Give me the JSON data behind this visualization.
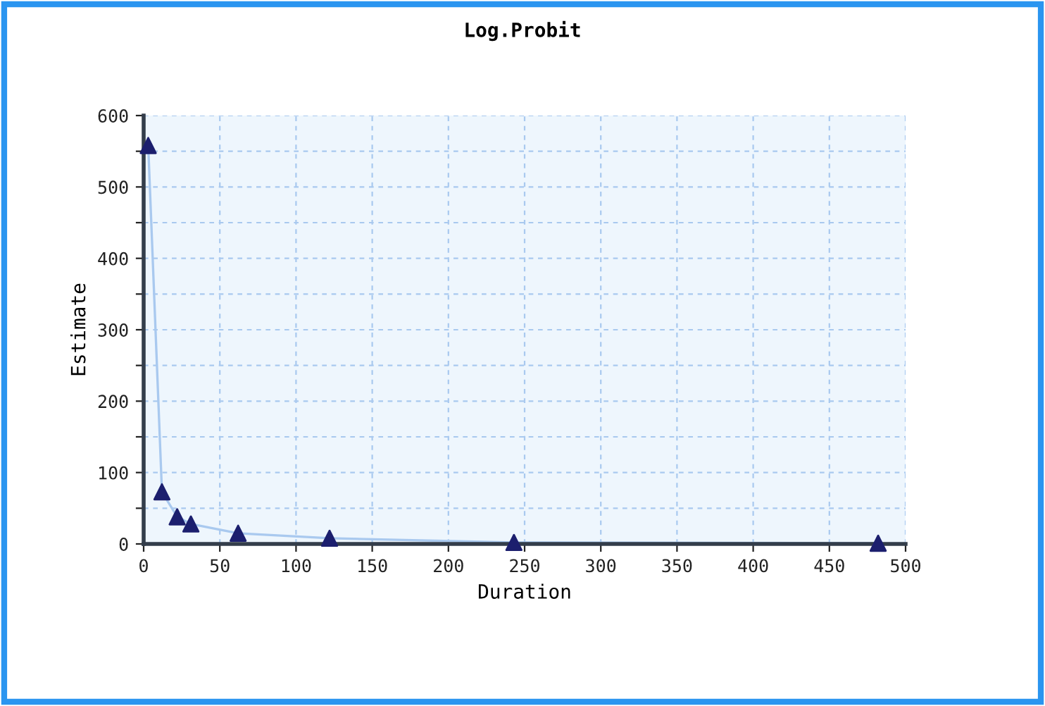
{
  "chart_data": {
    "type": "scatter",
    "title": "Log.Probit",
    "xlabel": "Duration",
    "ylabel": "Estimate",
    "series": [
      {
        "type": "line",
        "color": "#a9c9ef",
        "x": [
          3,
          12,
          22,
          31,
          62,
          122,
          243,
          482
        ],
        "values": [
          558,
          73,
          38,
          28,
          15,
          8,
          2,
          1
        ],
        "marker": "none"
      },
      {
        "color": "#1c1f6e",
        "x": [
          3,
          12,
          22,
          31,
          62,
          122,
          243,
          482
        ],
        "values": [
          558,
          73,
          38,
          28,
          15,
          8,
          2,
          1
        ],
        "marker": "triangle"
      }
    ],
    "xlim": [
      0,
      500
    ],
    "xticks": [
      0,
      50,
      100,
      150,
      200,
      250,
      300,
      350,
      400,
      450,
      500
    ],
    "ylim": [
      0,
      600
    ],
    "yticks": [
      0,
      {
        "value": 50,
        "label": null
      },
      100,
      {
        "value": 150,
        "label": null
      },
      200,
      {
        "value": 250,
        "label": null
      },
      300,
      {
        "value": 350,
        "label": null
      },
      400,
      {
        "value": 450,
        "label": null
      },
      500,
      {
        "value": 550,
        "label": null
      },
      600
    ],
    "grid": true,
    "legend": false
  }
}
